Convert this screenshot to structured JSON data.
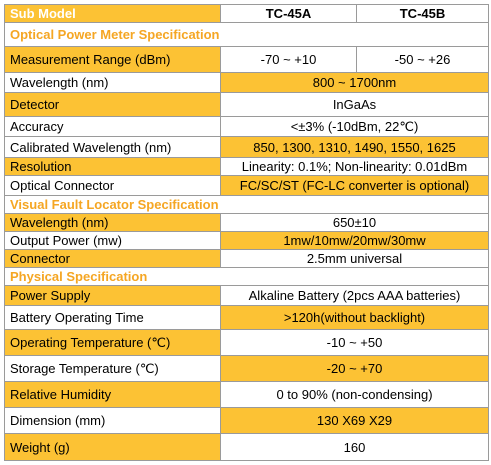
{
  "header": [
    "Sub Model",
    "TC-45A",
    "TC-45B"
  ],
  "sections": [
    {
      "title": "Optical Power Meter Specification",
      "rows": [
        {
          "label": "Measurement Range (dBm)",
          "values": [
            "-70 ~ +10",
            "-50 ~ +26"
          ]
        },
        {
          "label": "Wavelength (nm)",
          "values": [
            "800 ~ 1700nm"
          ]
        },
        {
          "label": "Detector",
          "values": [
            "InGaAs"
          ]
        },
        {
          "label": "Accuracy",
          "values": [
            "<±3% (-10dBm, 22℃)"
          ]
        },
        {
          "label": "Calibrated Wavelength (nm)",
          "values": [
            "850, 1300, 1310, 1490, 1550, 1625"
          ]
        },
        {
          "label": "Resolution",
          "values": [
            "Linearity: 0.1%; Non-linearity: 0.01dBm"
          ]
        },
        {
          "label": "Optical Connector",
          "values": [
            "FC/SC/ST (FC-LC converter is optional)"
          ]
        }
      ]
    },
    {
      "title": "Visual Fault Locator Specification",
      "rows": [
        {
          "label": "Wavelength (nm)",
          "values": [
            "650±10"
          ]
        },
        {
          "label": "Output Power (mw)",
          "values": [
            "1mw/10mw/20mw/30mw"
          ]
        },
        {
          "label": "Connector",
          "values": [
            "2.5mm universal"
          ]
        }
      ]
    },
    {
      "title": "Physical Specification",
      "rows": [
        {
          "label": "Power Supply",
          "values": [
            "Alkaline Battery (2pcs AAA batteries)"
          ]
        },
        {
          "label": "Battery Operating Time",
          "values": [
            ">120h(without backlight)"
          ]
        },
        {
          "label": "Operating Temperature (℃)",
          "values": [
            "-10 ~ +50"
          ]
        },
        {
          "label": "Storage Temperature (℃)",
          "values": [
            "-20 ~ +70"
          ]
        },
        {
          "label": "Relative Humidity",
          "values": [
            "0 to 90% (non-condensing)"
          ]
        },
        {
          "label": "Dimension (mm)",
          "values": [
            "130 X69 X29"
          ]
        },
        {
          "label": "Weight (g)",
          "values": [
            "160"
          ]
        }
      ]
    }
  ]
}
